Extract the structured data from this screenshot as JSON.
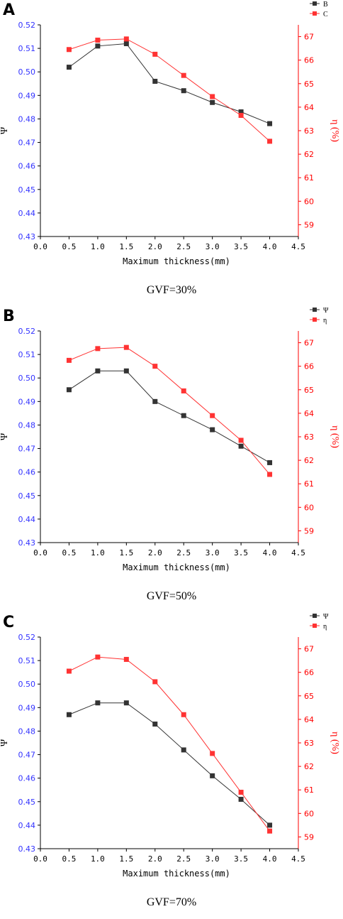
{
  "colors": {
    "left_axis": "#3333ff",
    "right_axis": "#ff0000",
    "series_psi": "#333333",
    "series_eta": "#ff3333"
  },
  "chart_data": [
    {
      "type": "line",
      "panel_label": "A",
      "caption": "GVF=30%",
      "xlabel": "Maximum thickness(mm)",
      "ylabel_left": "Ψ",
      "ylabel_right": "η (%)",
      "xlim": [
        0.0,
        4.5
      ],
      "ylim_left": [
        0.43,
        0.52
      ],
      "ylim_right": [
        58.5,
        67.5
      ],
      "x_ticks": [
        "0.0",
        "0.5",
        "1.0",
        "1.5",
        "2.0",
        "2.5",
        "3.0",
        "3.5",
        "4.0",
        "4.5"
      ],
      "y_ticks_left": [
        "0.43",
        "0.44",
        "0.45",
        "0.46",
        "0.47",
        "0.48",
        "0.49",
        "0.50",
        "0.51",
        "0.52"
      ],
      "y_ticks_right": [
        "59",
        "60",
        "61",
        "62",
        "63",
        "64",
        "65",
        "66",
        "67"
      ],
      "legend": [
        "B",
        "C"
      ],
      "legend_position": "top-right",
      "series": [
        {
          "name": "B",
          "axis": "left",
          "x": [
            0.5,
            1.0,
            1.5,
            2.0,
            2.5,
            3.0,
            3.5,
            4.0
          ],
          "values": [
            0.502,
            0.511,
            0.512,
            0.496,
            0.492,
            0.487,
            0.483,
            0.478
          ]
        },
        {
          "name": "C",
          "axis": "right",
          "x": [
            0.5,
            1.0,
            1.5,
            2.0,
            2.5,
            3.0,
            3.5,
            4.0
          ],
          "values": [
            66.45,
            66.85,
            66.9,
            66.25,
            65.35,
            64.45,
            63.65,
            62.55
          ]
        }
      ]
    },
    {
      "type": "line",
      "panel_label": "B",
      "caption": "GVF=50%",
      "xlabel": "Maximum thickness(mm)",
      "ylabel_left": "Ψ",
      "ylabel_right": "η (%)",
      "xlim": [
        0.0,
        4.5
      ],
      "ylim_left": [
        0.43,
        0.52
      ],
      "ylim_right": [
        58.5,
        67.5
      ],
      "x_ticks": [
        "0.0",
        "0.5",
        "1.0",
        "1.5",
        "2.0",
        "2.5",
        "3.0",
        "3.5",
        "4.0",
        "4.5"
      ],
      "y_ticks_left": [
        "0.43",
        "0.44",
        "0.45",
        "0.46",
        "0.47",
        "0.48",
        "0.49",
        "0.50",
        "0.51",
        "0.52"
      ],
      "y_ticks_right": [
        "59",
        "60",
        "61",
        "62",
        "63",
        "64",
        "65",
        "66",
        "67"
      ],
      "legend": [
        "Ψ",
        "η"
      ],
      "legend_position": "top-right",
      "series": [
        {
          "name": "Ψ",
          "axis": "left",
          "x": [
            0.5,
            1.0,
            1.5,
            2.0,
            2.5,
            3.0,
            3.5,
            4.0
          ],
          "values": [
            0.495,
            0.503,
            0.503,
            0.49,
            0.484,
            0.478,
            0.471,
            0.464
          ]
        },
        {
          "name": "η",
          "axis": "right",
          "x": [
            0.5,
            1.0,
            1.5,
            2.0,
            2.5,
            3.0,
            3.5,
            4.0
          ],
          "values": [
            66.25,
            66.75,
            66.8,
            66.0,
            64.95,
            63.9,
            62.85,
            61.4
          ]
        }
      ]
    },
    {
      "type": "line",
      "panel_label": "C",
      "caption": "GVF=70%",
      "xlabel": "Maximum thickness(mm)",
      "ylabel_left": "Ψ",
      "ylabel_right": "η (%)",
      "xlim": [
        0.0,
        4.5
      ],
      "ylim_left": [
        0.43,
        0.52
      ],
      "ylim_right": [
        58.5,
        67.5
      ],
      "x_ticks": [
        "0.0",
        "0.5",
        "1.0",
        "1.5",
        "2.0",
        "2.5",
        "3.0",
        "3.5",
        "4.0",
        "4.5"
      ],
      "y_ticks_left": [
        "0.43",
        "0.44",
        "0.45",
        "0.46",
        "0.47",
        "0.48",
        "0.49",
        "0.50",
        "0.51",
        "0.52"
      ],
      "y_ticks_right": [
        "59",
        "60",
        "61",
        "62",
        "63",
        "64",
        "65",
        "66",
        "67"
      ],
      "legend": [
        "Ψ",
        "η"
      ],
      "legend_position": "top-right",
      "series": [
        {
          "name": "Ψ",
          "axis": "left",
          "x": [
            0.5,
            1.0,
            1.5,
            2.0,
            2.5,
            3.0,
            3.5,
            4.0
          ],
          "values": [
            0.487,
            0.492,
            0.492,
            0.483,
            0.472,
            0.461,
            0.451,
            0.44
          ]
        },
        {
          "name": "η",
          "axis": "right",
          "x": [
            0.5,
            1.0,
            1.5,
            2.0,
            2.5,
            3.0,
            3.5,
            4.0
          ],
          "values": [
            66.05,
            66.65,
            66.55,
            65.6,
            64.2,
            62.55,
            60.9,
            59.25
          ]
        }
      ]
    }
  ]
}
